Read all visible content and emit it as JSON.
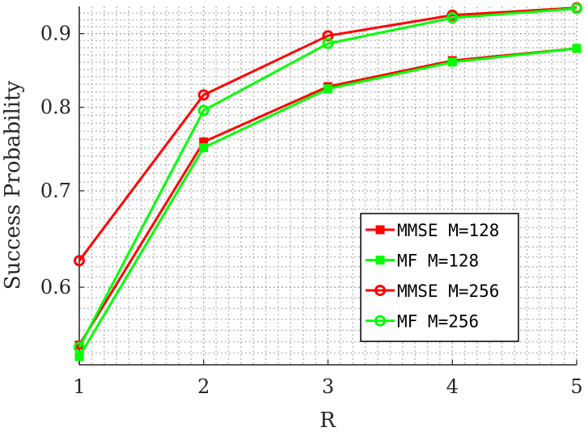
{
  "chart_data": {
    "type": "line",
    "title": "",
    "xlabel": "R",
    "ylabel": "Success Probability",
    "x": [
      1,
      2,
      3,
      4,
      5
    ],
    "xlim": [
      1,
      5
    ],
    "ylim": [
      0.53,
      0.94
    ],
    "yscale": "log",
    "xticks": [
      "1",
      "2",
      "3",
      "4",
      "5"
    ],
    "yticks": [
      {
        "value": 0.6,
        "label": "0.6"
      },
      {
        "value": 0.7,
        "label": "0.7"
      },
      {
        "value": 0.8,
        "label": "0.8"
      },
      {
        "value": 0.9,
        "label": "0.9"
      }
    ],
    "grid": "on (major and minor, dotted)",
    "legend_position": "lower-right",
    "series": [
      {
        "name": "MMSE M=128",
        "values": [
          0.547,
          0.757,
          0.827,
          0.862,
          0.879
        ],
        "color": "#ff0000",
        "marker": "square",
        "fill": "filled"
      },
      {
        "name": "MF M=128",
        "values": [
          0.537,
          0.75,
          0.824,
          0.86,
          0.879
        ],
        "color": "#00ff00",
        "marker": "square",
        "fill": "filled"
      },
      {
        "name": "MMSE M=256",
        "values": [
          0.626,
          0.816,
          0.897,
          0.927,
          0.938
        ],
        "color": "#ff0000",
        "marker": "circle",
        "fill": "open"
      },
      {
        "name": "MF M=256",
        "values": [
          0.545,
          0.796,
          0.886,
          0.923,
          0.937
        ],
        "color": "#00ff00",
        "marker": "circle",
        "fill": "open"
      }
    ]
  }
}
